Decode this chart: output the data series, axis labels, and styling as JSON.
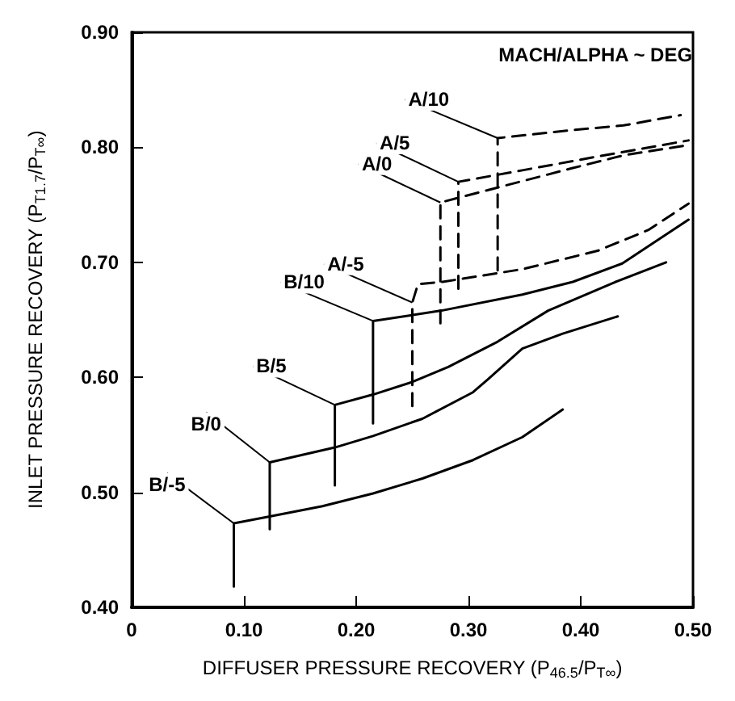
{
  "chart_data": {
    "type": "line",
    "xlabel": "DIFFUSER PRESSURE RECOVERY (P$_{46.5}$/P$_{T∞}$)",
    "ylabel": "INLET PRESSURE RECOVERY (P$_{T1.7}$/P$_{T∞}$)",
    "legend_title": "MACH/ALPHA ~ DEG",
    "legend": false,
    "grid": false,
    "marker": "none",
    "xlim": [
      0,
      0.5
    ],
    "ylim": [
      0.4,
      0.9
    ],
    "xticks": [
      0,
      {
        "value": 0.1,
        "label": "0.10"
      },
      {
        "value": 0.2,
        "label": "0.20"
      },
      {
        "value": 0.3,
        "label": "0.30"
      },
      {
        "value": 0.4,
        "label": "0.40"
      },
      {
        "value": 0.5,
        "label": "0.50"
      }
    ],
    "yticks": [
      {
        "value": 0.4,
        "label": "0.40"
      },
      {
        "value": 0.5,
        "label": "0.50"
      },
      {
        "value": 0.6,
        "label": "0.60"
      },
      {
        "value": 0.7,
        "label": "0.70"
      },
      {
        "value": 0.8,
        "label": "0.80"
      },
      {
        "value": 0.9,
        "label": "0.90"
      }
    ],
    "series": [
      {
        "name": "A/10",
        "color": "#000000",
        "line_style": "dashed",
        "x": [
          0.326,
          0.326,
          0.393,
          0.438,
          0.489
        ],
        "values": [
          0.693,
          0.808,
          0.815,
          0.819,
          0.828
        ]
      },
      {
        "name": "A/5",
        "color": "#000000",
        "line_style": "dashed",
        "x": [
          0.291,
          0.291,
          0.348,
          0.415,
          0.496
        ],
        "values": [
          0.677,
          0.77,
          0.78,
          0.792,
          0.806
        ]
      },
      {
        "name": "A/0",
        "color": "#000000",
        "line_style": "dashed",
        "x": [
          0.275,
          0.275,
          0.326,
          0.393,
          0.438,
          0.496
        ],
        "values": [
          0.647,
          0.752,
          0.765,
          0.782,
          0.793,
          0.802
        ]
      },
      {
        "name": "A/-5",
        "color": "#000000",
        "line_style": "dashed",
        "x": [
          0.25,
          0.25,
          0.255,
          0.277,
          0.348,
          0.415,
          0.46,
          0.496
        ],
        "values": [
          0.575,
          0.665,
          0.681,
          0.683,
          0.694,
          0.71,
          0.728,
          0.751
        ]
      },
      {
        "name": "B/10",
        "color": "#000000",
        "line_style": "solid",
        "x": [
          0.215,
          0.215,
          0.276,
          0.348,
          0.393,
          0.437,
          0.496
        ],
        "values": [
          0.56,
          0.649,
          0.658,
          0.672,
          0.683,
          0.699,
          0.737
        ]
      },
      {
        "name": "B/5",
        "color": "#000000",
        "line_style": "solid",
        "x": [
          0.181,
          0.181,
          0.215,
          0.25,
          0.282,
          0.326,
          0.371,
          0.431,
          0.476
        ],
        "values": [
          0.506,
          0.576,
          0.585,
          0.596,
          0.609,
          0.631,
          0.658,
          0.683,
          0.7
        ]
      },
      {
        "name": "B/0",
        "color": "#000000",
        "line_style": "solid",
        "x": [
          0.123,
          0.123,
          0.181,
          0.215,
          0.259,
          0.304,
          0.317,
          0.348,
          0.384,
          0.433
        ],
        "values": [
          0.468,
          0.526,
          0.539,
          0.549,
          0.564,
          0.587,
          0.598,
          0.625,
          0.638,
          0.653
        ]
      },
      {
        "name": "B/-5",
        "color": "#000000",
        "line_style": "solid",
        "x": [
          0.091,
          0.091,
          0.123,
          0.17,
          0.215,
          0.259,
          0.304,
          0.348,
          0.384
        ],
        "values": [
          0.418,
          0.473,
          0.479,
          0.488,
          0.499,
          0.512,
          0.528,
          0.548,
          0.572
        ]
      }
    ]
  }
}
